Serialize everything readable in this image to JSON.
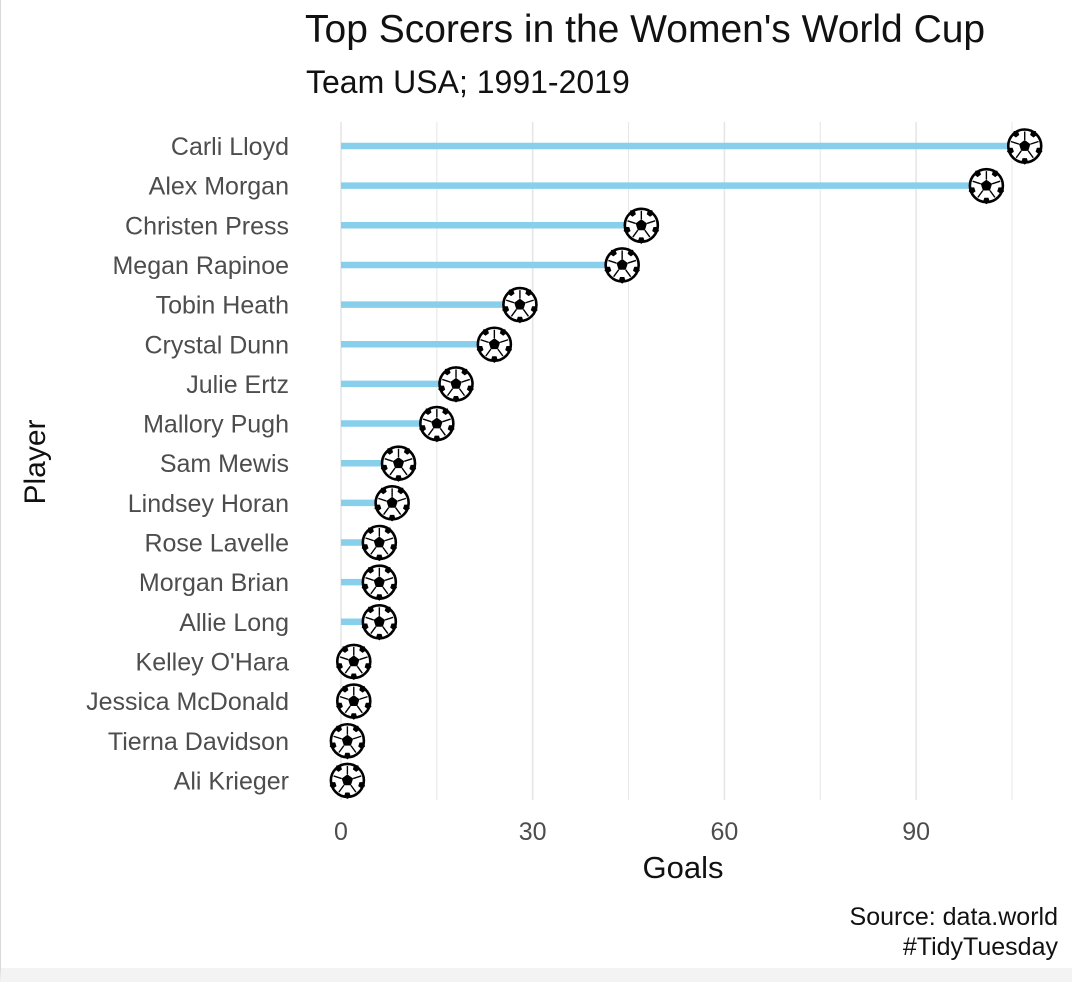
{
  "chart_data": {
    "type": "lollipop",
    "title": "Top Scorers in the Women's World Cup",
    "subtitle": "Team USA; 1991-2019",
    "xlabel": "Goals",
    "ylabel": "Player",
    "xlim": [
      0,
      105
    ],
    "xticks": [
      0,
      30,
      60,
      90
    ],
    "grid": true,
    "marker": "soccer-ball",
    "colors": {
      "stem": "#87cfeb",
      "grid": "#e6e6e6"
    },
    "categories": [
      "Carli Lloyd",
      "Alex Morgan",
      "Christen Press",
      "Megan Rapinoe",
      "Tobin Heath",
      "Crystal Dunn",
      "Julie Ertz",
      "Mallory Pugh",
      "Sam Mewis",
      "Lindsey Horan",
      "Rose Lavelle",
      "Morgan Brian",
      "Allie Long",
      "Kelley O'Hara",
      "Jessica McDonald",
      "Tierna Davidson",
      "Ali Krieger"
    ],
    "values": [
      107,
      101,
      47,
      44,
      28,
      24,
      18,
      15,
      9,
      8,
      6,
      6,
      6,
      2,
      2,
      1,
      1
    ]
  },
  "caption": {
    "line1": "Source: data.world",
    "line2": "#TidyTuesday"
  }
}
